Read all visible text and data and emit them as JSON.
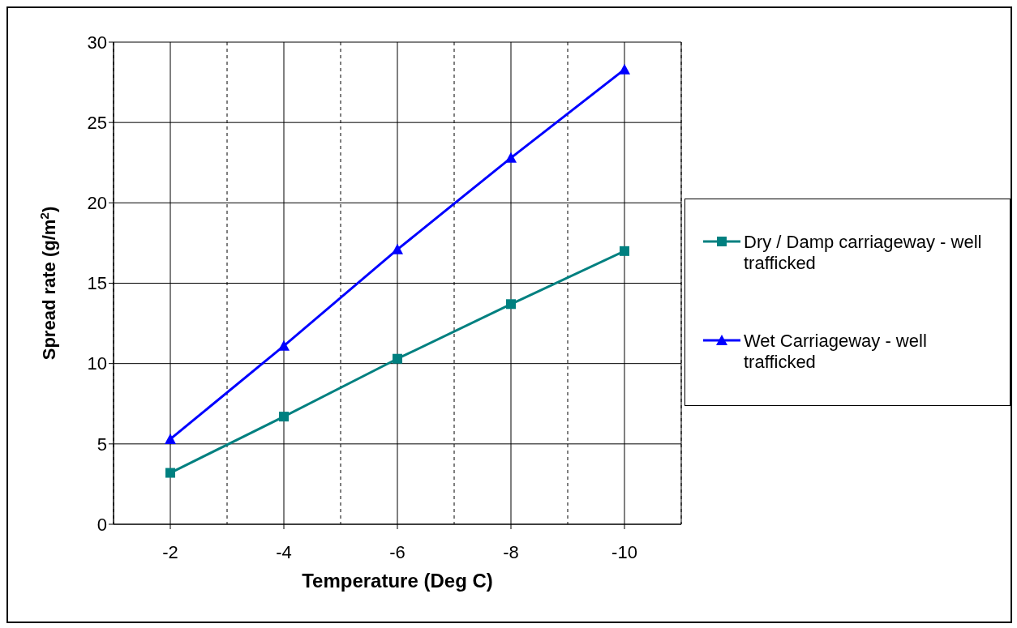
{
  "chart_data": {
    "type": "line",
    "xlabel": "Temperature (Deg C)",
    "ylabel": "Spread rate (g/m$^{2}$)",
    "categories": [
      "-2",
      "-4",
      "-6",
      "-8",
      "-10"
    ],
    "series": [
      {
        "name": "Dry / Damp carriageway - well trafficked",
        "color": "#008080",
        "marker": "square",
        "values": [
          3.2,
          6.7,
          10.3,
          13.7,
          17.0
        ]
      },
      {
        "name": "Wet Carriageway - well trafficked",
        "color": "#0000ff",
        "marker": "triangle",
        "values": [
          5.3,
          11.1,
          17.1,
          22.8,
          28.3
        ]
      }
    ],
    "ylim": [
      0,
      30
    ],
    "yticks": [
      0,
      5,
      10,
      15,
      20,
      25,
      30
    ],
    "grid": true,
    "legend": "right"
  }
}
